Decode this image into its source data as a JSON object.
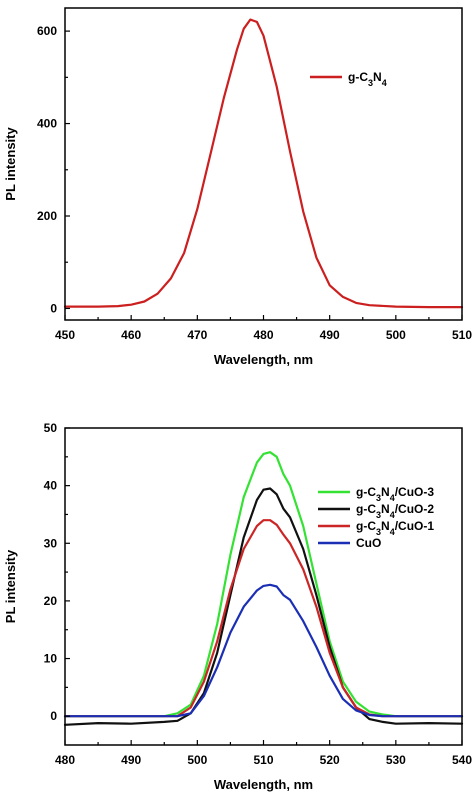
{
  "chart_data": [
    {
      "type": "line",
      "xlabel": "Wavelength, nm",
      "ylabel": "PL intensity",
      "xlim": [
        450,
        510
      ],
      "ylim": [
        -25,
        650
      ],
      "xticks": [
        "450",
        "460",
        "470",
        "480",
        "490",
        "500",
        "510"
      ],
      "yticks": [
        "0",
        "200",
        "400",
        "600"
      ],
      "legend_position": "right",
      "series": [
        {
          "name": "g-C3N4",
          "legend_parts": [
            {
              "t": "g-C",
              "sub": false
            },
            {
              "t": "3",
              "sub": true
            },
            {
              "t": "N",
              "sub": false
            },
            {
              "t": "4",
              "sub": true
            }
          ],
          "color": "#cc1f1f",
          "x": [
            450,
            455,
            458,
            460,
            462,
            464,
            466,
            468,
            470,
            472,
            474,
            476,
            477,
            478,
            479,
            480,
            482,
            484,
            486,
            488,
            490,
            492,
            494,
            496,
            500,
            505,
            510
          ],
          "y": [
            4,
            4,
            5,
            8,
            15,
            32,
            65,
            120,
            215,
            335,
            455,
            560,
            605,
            625,
            620,
            590,
            480,
            340,
            210,
            110,
            50,
            25,
            12,
            7,
            4,
            3,
            3
          ]
        }
      ]
    },
    {
      "type": "line",
      "xlabel": "Wavelength, nm",
      "ylabel": "PL intensity",
      "xlim": [
        480,
        540
      ],
      "ylim": [
        -5,
        50
      ],
      "xticks": [
        "480",
        "490",
        "500",
        "510",
        "520",
        "530",
        "540"
      ],
      "yticks": [
        "0",
        "10",
        "20",
        "30",
        "40",
        "50"
      ],
      "legend_position": "top-right",
      "series": [
        {
          "name": "g-C3N4/CuO-3",
          "legend_parts": [
            {
              "t": "g-C",
              "sub": false
            },
            {
              "t": "3",
              "sub": true
            },
            {
              "t": "N",
              "sub": false
            },
            {
              "t": "4",
              "sub": true
            },
            {
              "t": "/CuO-3",
              "sub": false
            }
          ],
          "color": "#33e233",
          "x": [
            480,
            485,
            490,
            495,
            497,
            499,
            501,
            503,
            505,
            507,
            509,
            510,
            511,
            512,
            513,
            514,
            516,
            518,
            520,
            522,
            524,
            526,
            528,
            530,
            535,
            540
          ],
          "y": [
            0,
            0,
            0,
            0,
            0.5,
            2,
            7,
            16,
            28,
            38,
            44,
            45.5,
            45.8,
            45,
            42,
            40,
            33,
            23,
            13,
            6,
            2.5,
            0.8,
            0.3,
            0,
            0,
            0
          ]
        },
        {
          "name": "g-C3N4/CuO-2",
          "legend_parts": [
            {
              "t": "g-C",
              "sub": false
            },
            {
              "t": "3",
              "sub": true
            },
            {
              "t": "N",
              "sub": false
            },
            {
              "t": "4",
              "sub": true
            },
            {
              "t": "/CuO-2",
              "sub": false
            }
          ],
          "color": "#111111",
          "x": [
            480,
            485,
            490,
            495,
            497,
            499,
            501,
            503,
            505,
            507,
            509,
            510,
            511,
            512,
            513,
            514,
            516,
            518,
            520,
            522,
            524,
            526,
            528,
            530,
            535,
            540
          ],
          "y": [
            -1.5,
            -1.2,
            -1.3,
            -1,
            -0.8,
            0.5,
            4,
            11,
            21,
            31,
            37.5,
            39.3,
            39.5,
            38.5,
            36,
            34.5,
            29,
            21,
            12,
            5,
            1.5,
            -0.5,
            -1,
            -1.3,
            -1.2,
            -1.3
          ]
        },
        {
          "name": "g-C3N4/CuO-1",
          "legend_parts": [
            {
              "t": "g-C",
              "sub": false
            },
            {
              "t": "3",
              "sub": true
            },
            {
              "t": "N",
              "sub": false
            },
            {
              "t": "4",
              "sub": true
            },
            {
              "t": "/CuO-1",
              "sub": false
            }
          ],
          "color": "#cc2525",
          "x": [
            480,
            485,
            490,
            495,
            497,
            499,
            501,
            503,
            505,
            507,
            509,
            510,
            511,
            512,
            513,
            514,
            516,
            518,
            520,
            522,
            524,
            526,
            528,
            530,
            535,
            540
          ],
          "y": [
            0,
            0,
            0,
            0,
            0,
            1.5,
            6,
            13,
            22,
            29,
            33,
            34,
            34,
            33.2,
            31.5,
            30,
            25.5,
            19,
            11,
            5,
            1.5,
            0.3,
            0,
            0,
            0,
            0
          ]
        },
        {
          "name": "CuO",
          "legend_parts": [
            {
              "t": "CuO",
              "sub": false
            }
          ],
          "color": "#1b2fb5",
          "x": [
            480,
            485,
            490,
            495,
            497,
            499,
            501,
            503,
            505,
            507,
            509,
            510,
            511,
            512,
            513,
            514,
            516,
            518,
            520,
            522,
            524,
            526,
            528,
            530,
            535,
            540
          ],
          "y": [
            0,
            0,
            0,
            0,
            0,
            0.5,
            3.5,
            8.5,
            14.5,
            19,
            21.8,
            22.6,
            22.8,
            22.5,
            21,
            20.2,
            16.5,
            12,
            7,
            3,
            1,
            0.2,
            0,
            0,
            0,
            0
          ]
        }
      ]
    }
  ]
}
